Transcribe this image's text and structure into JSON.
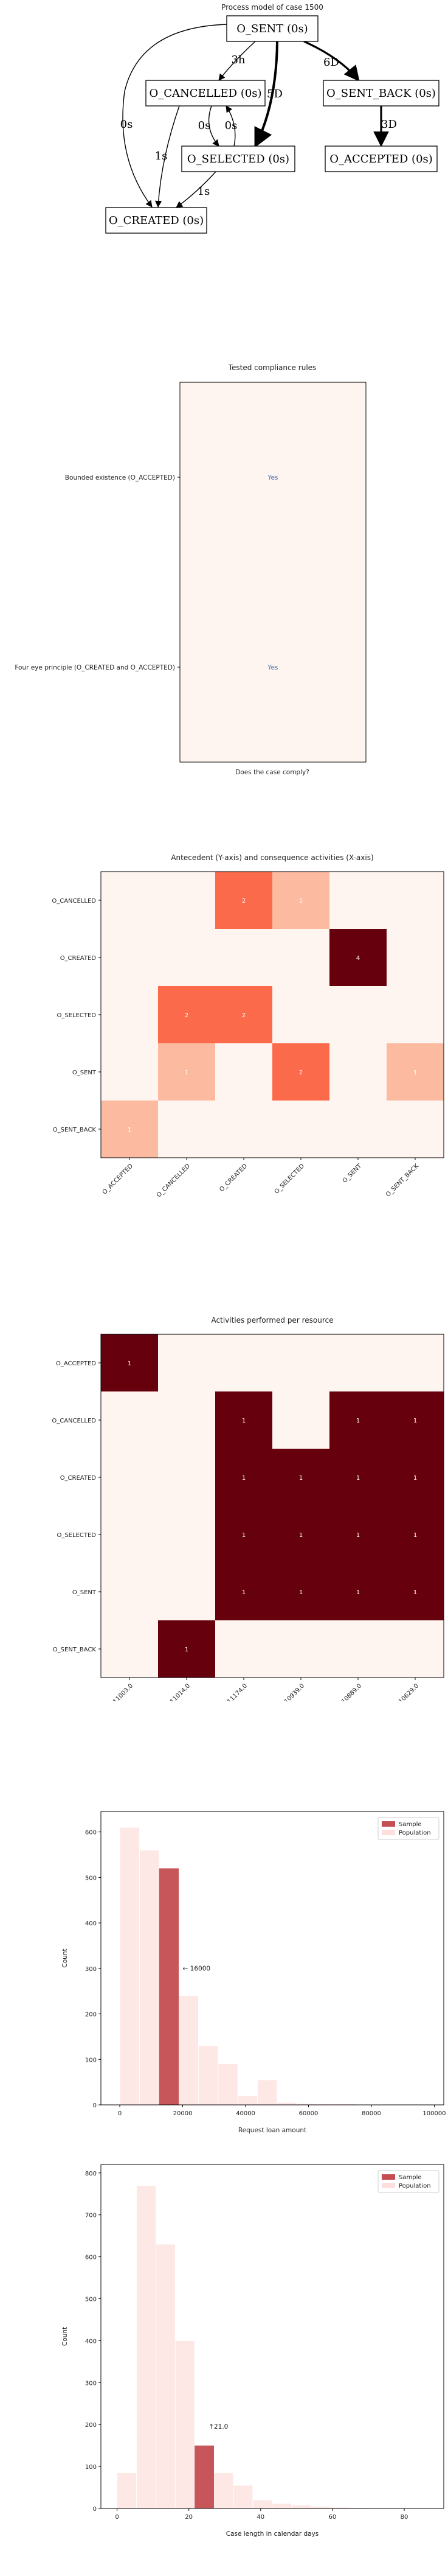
{
  "process_model": {
    "title": "Process model of case 1500",
    "nodes": [
      {
        "id": "sent",
        "label": "O_SENT (0s)"
      },
      {
        "id": "cancelled",
        "label": "O_CANCELLED (0s)"
      },
      {
        "id": "sentback",
        "label": "O_SENT_BACK (0s)"
      },
      {
        "id": "selected",
        "label": "O_SELECTED (0s)"
      },
      {
        "id": "accepted",
        "label": "O_ACCEPTED (0s)"
      },
      {
        "id": "created",
        "label": "O_CREATED (0s)"
      }
    ],
    "edges": [
      {
        "from": "sent",
        "to": "cancelled",
        "label": "3h"
      },
      {
        "from": "sent",
        "to": "selected",
        "label": "5D"
      },
      {
        "from": "sent",
        "to": "sentback",
        "label": "6D"
      },
      {
        "from": "sent",
        "to": "created",
        "label": "0s"
      },
      {
        "from": "cancelled",
        "to": "selected",
        "label": "0s"
      },
      {
        "from": "selected",
        "to": "cancelled",
        "label": "0s"
      },
      {
        "from": "cancelled",
        "to": "created",
        "label": "1s"
      },
      {
        "from": "selected",
        "to": "created",
        "label": "1s"
      },
      {
        "from": "sentback",
        "to": "accepted",
        "label": "3D"
      }
    ]
  },
  "chart_data": [
    {
      "type": "table",
      "title": "Tested compliance rules",
      "xlabel": "Does the case comply?",
      "rows": [
        "Bounded existence (O_ACCEPTED)",
        "Four eye principle (O_CREATED and O_ACCEPTED)"
      ],
      "values": [
        "Yes",
        "Yes"
      ],
      "colors": {
        "cell": "#fff5f0",
        "text": "#4c72b0"
      }
    },
    {
      "type": "heatmap",
      "title": "Antecedent (Y-axis) and consequence activities (X-axis)",
      "y": [
        "O_CANCELLED",
        "O_CREATED",
        "O_SELECTED",
        "O_SENT",
        "O_SENT_BACK"
      ],
      "x": [
        "O_ACCEPTED",
        "O_CANCELLED",
        "O_CREATED",
        "O_SELECTED",
        "O_SENT",
        "O_SENT_BACK"
      ],
      "values": [
        [
          0,
          0,
          2,
          1,
          0,
          0
        ],
        [
          0,
          0,
          0,
          0,
          4,
          0
        ],
        [
          0,
          2,
          2,
          0,
          0,
          0
        ],
        [
          0,
          1,
          0,
          2,
          0,
          1
        ],
        [
          1,
          0,
          0,
          0,
          0,
          0
        ]
      ],
      "colormap": "Reds"
    },
    {
      "type": "heatmap",
      "title": "Activities performed per resource",
      "y": [
        "O_ACCEPTED",
        "O_CANCELLED",
        "O_CREATED",
        "O_SELECTED",
        "O_SENT",
        "O_SENT_BACK"
      ],
      "x": [
        "11003.0",
        "11014.0",
        "11174.0",
        "10939.0",
        "10889.0",
        "10629.0"
      ],
      "values": [
        [
          1,
          0,
          0,
          0,
          0,
          0
        ],
        [
          0,
          0,
          1,
          0,
          1,
          1
        ],
        [
          0,
          0,
          1,
          1,
          1,
          1
        ],
        [
          0,
          0,
          1,
          1,
          1,
          1
        ],
        [
          0,
          0,
          1,
          1,
          1,
          1
        ],
        [
          0,
          1,
          0,
          0,
          0,
          0
        ]
      ],
      "colormap": "Reds"
    },
    {
      "type": "bar",
      "title": "",
      "xlabel": "Request loan amount",
      "ylabel": "Count",
      "xlim": [
        -6000,
        103000
      ],
      "ylim": [
        0,
        645
      ],
      "xticks": [
        0,
        20000,
        40000,
        60000,
        80000,
        100000
      ],
      "yticks": [
        0,
        100,
        200,
        300,
        400,
        500,
        600
      ],
      "bin_width": 6250,
      "series": [
        {
          "name": "Population",
          "bins_start": [
            0,
            6250,
            12500,
            18750,
            25000,
            31250,
            37500,
            43750,
            50000,
            56250,
            62500,
            68750,
            75000,
            81250,
            87500,
            93750
          ],
          "values": [
            610,
            560,
            520,
            240,
            130,
            90,
            20,
            55,
            5,
            3,
            2,
            2,
            1,
            1,
            1,
            1
          ]
        },
        {
          "name": "Sample",
          "bins_start": [
            12500
          ],
          "values": [
            520
          ]
        }
      ],
      "annotation": "← 16000",
      "annotation_at": [
        20000,
        295
      ],
      "legend": "top-right",
      "colors": {
        "sample": "#c44e52",
        "population": "#fde0dd"
      }
    },
    {
      "type": "bar",
      "title": "",
      "xlabel": "Case length in calendar days",
      "ylabel": "Count",
      "xlim": [
        -4.5,
        91
      ],
      "ylim": [
        0,
        820
      ],
      "xticks": [
        0,
        20,
        40,
        60,
        80
      ],
      "yticks": [
        0,
        100,
        200,
        300,
        400,
        500,
        600,
        700,
        800
      ],
      "bin_width": 5.4,
      "series": [
        {
          "name": "Population",
          "bins_start": [
            0,
            5.4,
            10.8,
            16.2,
            21.6,
            27,
            32.4,
            37.8,
            43.2,
            48.6,
            54,
            59.4,
            64.8,
            70.2,
            75.6,
            81
          ],
          "values": [
            85,
            770,
            630,
            400,
            150,
            85,
            55,
            20,
            12,
            8,
            5,
            3,
            2,
            1,
            1,
            1
          ]
        },
        {
          "name": "Sample",
          "bins_start": [
            21.6
          ],
          "values": [
            150
          ]
        }
      ],
      "annotation": "↑21.0",
      "annotation_at": [
        25.5,
        190
      ],
      "legend": "top-right",
      "colors": {
        "sample": "#c44e52",
        "population": "#fde0dd"
      }
    }
  ]
}
